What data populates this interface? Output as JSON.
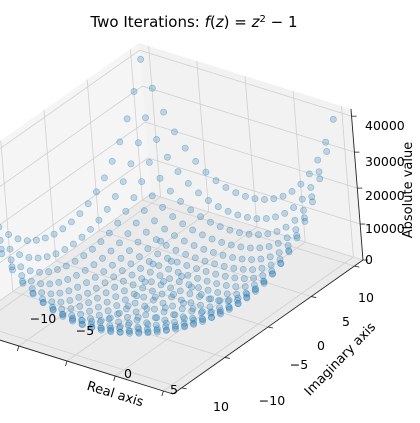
{
  "chart_data": {
    "type": "scatter",
    "title": "Two Iterations: f(z) = z² − 1",
    "title_parts": {
      "prefix": "Two Iterations: ",
      "f": "f",
      "z1": "z",
      "eq": " = ",
      "z2": "z",
      "exp": "2",
      "tail": " − 1"
    },
    "xlabel": "Real axis",
    "ylabel": "Imaginary axis",
    "zlabel": "Absolute value",
    "xlim": [
      -11,
      11
    ],
    "ylim": [
      -11,
      11
    ],
    "zlim": [
      0,
      42000
    ],
    "x_ticks": [
      "−10",
      "−5",
      "0",
      "5",
      "10"
    ],
    "y_ticks": [
      "−10",
      "−5",
      "0",
      "5",
      "10"
    ],
    "z_ticks": [
      "0",
      "10000",
      "20000",
      "30000",
      "40000"
    ],
    "grid": true,
    "marker_color": "#1f77b4",
    "marker_alpha": 0.25,
    "points_per_axis": 21,
    "x_range": [
      -10,
      10
    ],
    "y_range": [
      -10,
      10
    ],
    "z_formula": "|(x + iy)^4 - 2(x + iy)^2|"
  }
}
